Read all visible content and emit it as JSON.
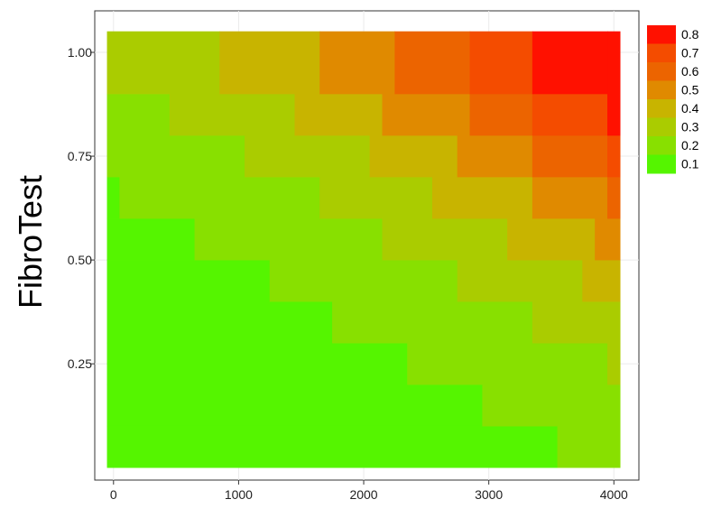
{
  "chart_data": {
    "type": "heatmap",
    "title": "",
    "xlabel": "",
    "ylabel": "FibroTest",
    "xlim": [
      -150,
      4200
    ],
    "ylim": [
      -0.03,
      1.1
    ],
    "x_ticks": [
      0,
      1000,
      2000,
      3000,
      4000
    ],
    "x_tick_labels": [
      "0",
      "1000",
      "2000",
      "3000",
      "4000"
    ],
    "y_ticks": [
      0.25,
      0.5,
      0.75,
      1.0
    ],
    "y_tick_labels": [
      "0.25",
      "0.50",
      "0.75",
      "1.00"
    ],
    "grid": true,
    "legend": {
      "placement": "right",
      "entries": [
        "0.8",
        "0.7",
        "0.6",
        "0.5",
        "0.4",
        "0.3",
        "0.2",
        "0.1"
      ],
      "colors": [
        "#ff1100",
        "#f44c00",
        "#ec6400",
        "#e08a00",
        "#c8b400",
        "#aacc00",
        "#88e000",
        "#55f500"
      ]
    },
    "cell_colors": {
      "0.1": "#55f500",
      "0.2": "#88e000",
      "0.3": "#aacc00",
      "0.4": "#c8b400",
      "0.5": "#e08a00",
      "0.6": "#ec6400",
      "0.7": "#f44c00",
      "0.8": "#ff1100"
    },
    "rows": [
      {
        "y0": 0.0,
        "y1": 0.1,
        "segments": [
          [
            -50,
            3550,
            "0.1"
          ],
          [
            3550,
            4050,
            "0.2"
          ]
        ]
      },
      {
        "y0": 0.1,
        "y1": 0.2,
        "segments": [
          [
            -50,
            2950,
            "0.1"
          ],
          [
            2950,
            4050,
            "0.2"
          ]
        ]
      },
      {
        "y0": 0.2,
        "y1": 0.3,
        "segments": [
          [
            -50,
            2350,
            "0.1"
          ],
          [
            2350,
            3950,
            "0.2"
          ],
          [
            3950,
            4050,
            "0.3"
          ]
        ]
      },
      {
        "y0": 0.3,
        "y1": 0.4,
        "segments": [
          [
            -50,
            1750,
            "0.1"
          ],
          [
            1750,
            3350,
            "0.2"
          ],
          [
            3350,
            4050,
            "0.3"
          ]
        ]
      },
      {
        "y0": 0.4,
        "y1": 0.5,
        "segments": [
          [
            -50,
            1250,
            "0.1"
          ],
          [
            1250,
            2750,
            "0.2"
          ],
          [
            2750,
            3750,
            "0.3"
          ],
          [
            3750,
            4050,
            "0.4"
          ]
        ]
      },
      {
        "y0": 0.5,
        "y1": 0.6,
        "segments": [
          [
            -50,
            650,
            "0.1"
          ],
          [
            650,
            2150,
            "0.2"
          ],
          [
            2150,
            3150,
            "0.3"
          ],
          [
            3150,
            3850,
            "0.4"
          ],
          [
            3850,
            4050,
            "0.5"
          ]
        ]
      },
      {
        "y0": 0.6,
        "y1": 0.7,
        "segments": [
          [
            -50,
            50,
            "0.1"
          ],
          [
            50,
            1650,
            "0.2"
          ],
          [
            1650,
            2550,
            "0.3"
          ],
          [
            2550,
            3350,
            "0.4"
          ],
          [
            3350,
            3950,
            "0.5"
          ],
          [
            3950,
            4050,
            "0.6"
          ]
        ]
      },
      {
        "y0": 0.7,
        "y1": 0.8,
        "segments": [
          [
            -50,
            1050,
            "0.2"
          ],
          [
            1050,
            2050,
            "0.3"
          ],
          [
            2050,
            2750,
            "0.4"
          ],
          [
            2750,
            3350,
            "0.5"
          ],
          [
            3350,
            3950,
            "0.6"
          ],
          [
            3950,
            4050,
            "0.7"
          ]
        ]
      },
      {
        "y0": 0.8,
        "y1": 0.9,
        "segments": [
          [
            -50,
            450,
            "0.2"
          ],
          [
            450,
            1450,
            "0.3"
          ],
          [
            1450,
            2150,
            "0.4"
          ],
          [
            2150,
            2850,
            "0.5"
          ],
          [
            2850,
            3350,
            "0.6"
          ],
          [
            3350,
            3950,
            "0.7"
          ],
          [
            3950,
            4050,
            "0.8"
          ]
        ]
      },
      {
        "y0": 0.9,
        "y1": 1.05,
        "segments": [
          [
            -50,
            850,
            "0.3"
          ],
          [
            850,
            1650,
            "0.4"
          ],
          [
            1650,
            2250,
            "0.5"
          ],
          [
            2250,
            2850,
            "0.6"
          ],
          [
            2850,
            3350,
            "0.7"
          ],
          [
            3350,
            3950,
            "0.8"
          ],
          [
            3950,
            4050,
            "0.8"
          ]
        ]
      }
    ]
  }
}
